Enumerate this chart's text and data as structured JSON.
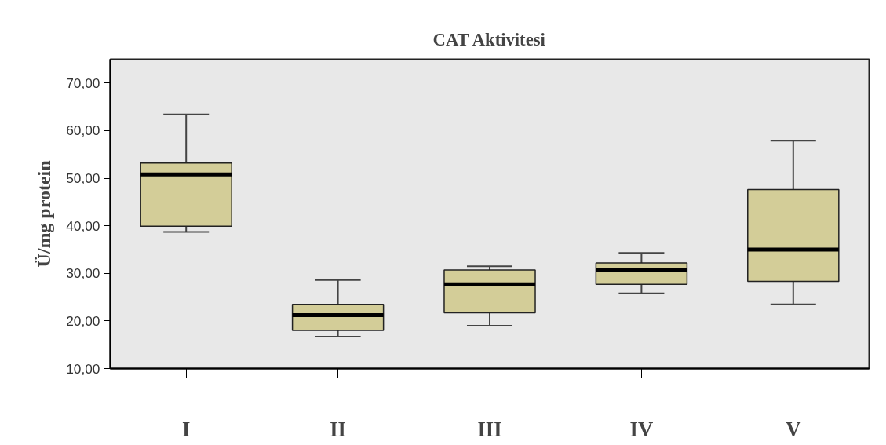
{
  "chart_data": {
    "type": "box",
    "title": "CAT Aktivitesi",
    "ylabel": "Ü/mg protein",
    "categories": [
      "I",
      "II",
      "III",
      "IV",
      "V"
    ],
    "series": [
      {
        "color": "#d3cd98",
        "boxes": [
          {
            "low": 38.7,
            "q1": 39.9,
            "median": 50.8,
            "q3": 53.2,
            "high": 63.4
          },
          {
            "low": 16.7,
            "q1": 18.0,
            "median": 21.2,
            "q3": 23.5,
            "high": 28.6
          },
          {
            "low": 19.0,
            "q1": 21.7,
            "median": 27.7,
            "q3": 30.7,
            "high": 31.5
          },
          {
            "low": 25.8,
            "q1": 27.7,
            "median": 30.8,
            "q3": 32.2,
            "high": 34.3
          },
          {
            "low": 23.5,
            "q1": 28.3,
            "median": 35.0,
            "q3": 47.6,
            "high": 57.9
          }
        ]
      }
    ],
    "ylim": [
      10,
      75
    ],
    "yticks": [
      {
        "value": 10,
        "label": "10,00"
      },
      {
        "value": 20,
        "label": "20,00"
      },
      {
        "value": 30,
        "label": "30,00"
      },
      {
        "value": 40,
        "label": "40,00"
      },
      {
        "value": 50,
        "label": "50,00"
      },
      {
        "value": 60,
        "label": "60,00"
      },
      {
        "value": 70,
        "label": "70,00"
      }
    ],
    "grid": false
  }
}
